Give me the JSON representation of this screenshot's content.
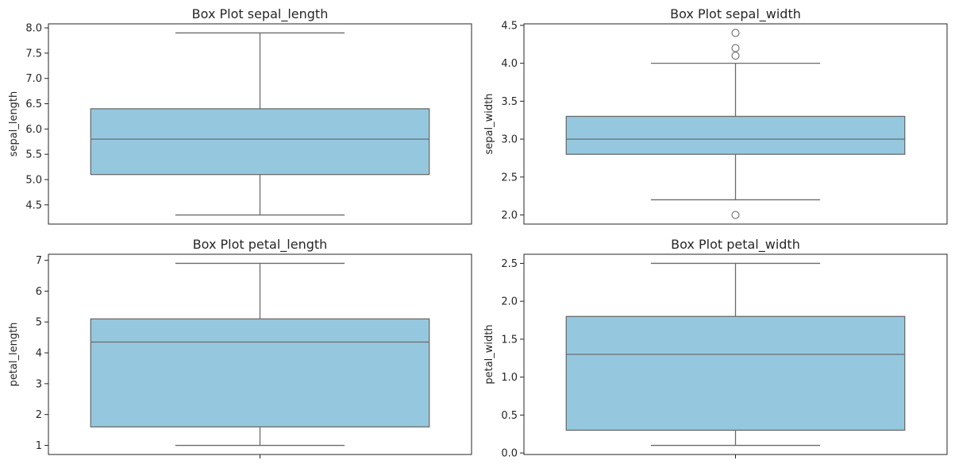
{
  "chart_data": [
    {
      "type": "box",
      "title": "Box Plot sepal_length",
      "xlabel": "",
      "ylabel": "sepal_length",
      "ylim": [
        4.12,
        8.08
      ],
      "yticks": [
        4.5,
        5.0,
        5.5,
        6.0,
        6.5,
        7.0,
        7.5,
        8.0
      ],
      "ytick_decimals": 1,
      "x_tick_mark": false,
      "box": {
        "whisker_low": 4.3,
        "q1": 5.1,
        "median": 5.8,
        "q3": 6.4,
        "whisker_high": 7.9
      },
      "outliers": [],
      "fill_color": "#95c8de",
      "line_color": "#6b6b6b"
    },
    {
      "type": "box",
      "title": "Box Plot sepal_width",
      "xlabel": "",
      "ylabel": "sepal_width",
      "ylim": [
        1.88,
        4.52
      ],
      "yticks": [
        2.0,
        2.5,
        3.0,
        3.5,
        4.0,
        4.5
      ],
      "ytick_decimals": 1,
      "x_tick_mark": false,
      "box": {
        "whisker_low": 2.2,
        "q1": 2.8,
        "median": 3.0,
        "q3": 3.3,
        "whisker_high": 4.0
      },
      "outliers": [
        4.4,
        4.2,
        4.1,
        2.0
      ],
      "fill_color": "#95c8de",
      "line_color": "#6b6b6b"
    },
    {
      "type": "box",
      "title": "Box Plot petal_length",
      "xlabel": "",
      "ylabel": "petal_length",
      "ylim": [
        0.705,
        7.195
      ],
      "yticks": [
        1,
        2,
        3,
        4,
        5,
        6,
        7
      ],
      "ytick_decimals": 0,
      "x_tick_mark": true,
      "box": {
        "whisker_low": 1.0,
        "q1": 1.6,
        "median": 4.35,
        "q3": 5.1,
        "whisker_high": 6.9
      },
      "outliers": [],
      "fill_color": "#95c8de",
      "line_color": "#6b6b6b"
    },
    {
      "type": "box",
      "title": "Box Plot petal_width",
      "xlabel": "",
      "ylabel": "petal_width",
      "ylim": [
        -0.02,
        2.62
      ],
      "yticks": [
        0.0,
        0.5,
        1.0,
        1.5,
        2.0,
        2.5
      ],
      "ytick_decimals": 1,
      "x_tick_mark": true,
      "box": {
        "whisker_low": 0.1,
        "q1": 0.3,
        "median": 1.3,
        "q3": 1.8,
        "whisker_high": 2.5
      },
      "outliers": [],
      "fill_color": "#95c8de",
      "line_color": "#6b6b6b"
    }
  ]
}
